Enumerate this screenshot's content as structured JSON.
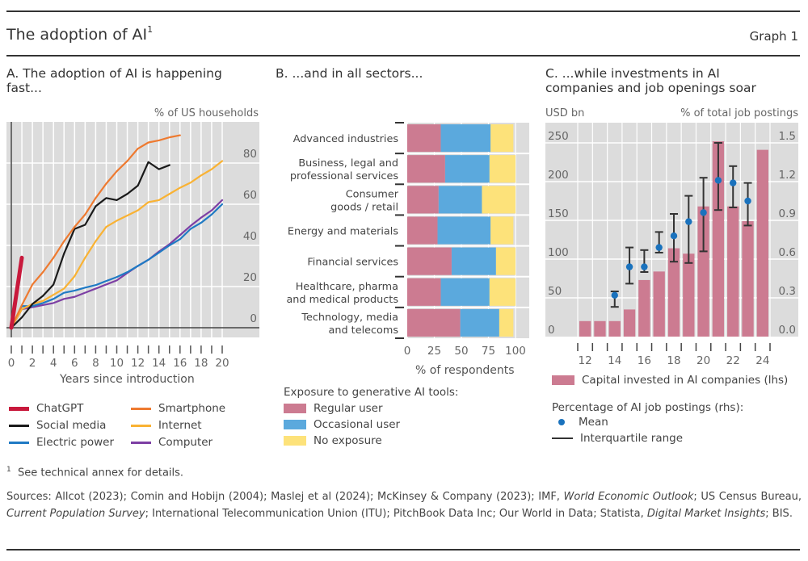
{
  "header": {
    "title": "The adoption of AI",
    "title_sup": "1",
    "graph_number": "Graph 1"
  },
  "colors": {
    "panel_bg": "#dcdcdc",
    "chatgpt": "#c8193c",
    "social_media": "#1a1a1a",
    "electric_power": "#1f7ac4",
    "smartphone": "#ee7a30",
    "internet": "#f9b233",
    "computer": "#7d3fa4",
    "regular_user": "#cc7b91",
    "occasional_user": "#5ba9dd",
    "no_exposure": "#fde27a",
    "capital_bars": "#cc7b91",
    "mean_dot": "#1a72bd",
    "iqr": "#333333"
  },
  "chart_data": [
    {
      "id": "panel_a",
      "type": "line",
      "title": "A. The adoption of AI is happening fast...",
      "ylabel": "% of US households",
      "xlabel": "Years since introduction",
      "xlim": [
        0,
        20
      ],
      "ylim": [
        0,
        100
      ],
      "x_ticks": [
        0,
        2,
        4,
        6,
        8,
        10,
        12,
        14,
        16,
        18,
        20
      ],
      "y_ticks": [
        0,
        20,
        40,
        60,
        80
      ],
      "grid": true,
      "legend_position": "bottom",
      "series": [
        {
          "key": "chatgpt",
          "name": "ChatGPT",
          "x": [
            0,
            1
          ],
          "values": [
            0,
            34
          ]
        },
        {
          "key": "social_media",
          "name": "Social media",
          "x": [
            0,
            1,
            2,
            3,
            4,
            5,
            6,
            7,
            8,
            9,
            10,
            11,
            12,
            13,
            14,
            15
          ],
          "values": [
            0,
            5,
            11.5,
            15.5,
            21,
            36,
            48,
            50,
            59,
            63,
            62,
            65,
            69,
            80.5,
            77,
            79
          ]
        },
        {
          "key": "electric_power",
          "name": "Electric power",
          "x": [
            0,
            1,
            2,
            3,
            4,
            5,
            6,
            7,
            8,
            9,
            10,
            11,
            12,
            13,
            14,
            15,
            16,
            17,
            18,
            19,
            20
          ],
          "values": [
            0,
            10.5,
            10.5,
            12,
            14,
            17,
            18,
            19.5,
            20.7,
            22.7,
            24.6,
            27,
            30,
            33,
            36.5,
            40,
            43,
            48,
            51,
            55,
            60
          ]
        },
        {
          "key": "smartphone",
          "name": "Smartphone",
          "x": [
            0,
            1,
            2,
            3,
            4,
            5,
            6,
            7,
            8,
            9,
            10,
            11,
            12,
            13,
            14,
            15,
            16
          ],
          "values": [
            0,
            11,
            21,
            27,
            34,
            42,
            49,
            55,
            63,
            70,
            76,
            81,
            87,
            90,
            91,
            92.5,
            93.5
          ]
        },
        {
          "key": "internet",
          "name": "Internet",
          "x": [
            0,
            1,
            2,
            3,
            4,
            5,
            6,
            7,
            8,
            9,
            10,
            11,
            12,
            13,
            14,
            15,
            16,
            17,
            18,
            19,
            20
          ],
          "values": [
            0,
            9,
            11.5,
            13,
            16,
            19,
            25,
            34,
            42,
            49,
            52,
            54.5,
            57,
            61,
            62,
            65,
            68,
            70.5,
            74,
            77,
            81
          ]
        },
        {
          "key": "computer",
          "name": "Computer",
          "x": [
            0,
            1,
            2,
            3,
            4,
            5,
            6,
            7,
            8,
            9,
            10,
            11,
            12,
            13,
            14,
            15,
            16,
            17,
            18,
            19,
            20
          ],
          "values": [
            0,
            9,
            10,
            11,
            12,
            14,
            15,
            17,
            19,
            21,
            23,
            26.6,
            30,
            33,
            37,
            40.6,
            45,
            49.5,
            53.5,
            57,
            62
          ]
        }
      ]
    },
    {
      "id": "panel_b",
      "type": "bar",
      "orientation": "horizontal-stacked",
      "title": "B. ...and in all sectors...",
      "xlabel": "% of respondents",
      "xlim": [
        0,
        100
      ],
      "x_ticks": [
        0,
        25,
        50,
        75,
        100
      ],
      "legend_title": "Exposure to generative AI tools:",
      "legend_position": "bottom",
      "categories": [
        [
          "Advanced industries"
        ],
        [
          "Business, legal and",
          "professional services"
        ],
        [
          "Consumer",
          "goods / retail"
        ],
        [
          "Energy and materials"
        ],
        [
          "Financial services"
        ],
        [
          "Healthcare, pharma",
          "and medical products"
        ],
        [
          "Technology, media",
          "and telecoms"
        ]
      ],
      "series": [
        {
          "key": "regular_user",
          "name": "Regular user",
          "values": [
            31,
            35,
            29,
            28,
            41,
            31,
            49
          ]
        },
        {
          "key": "occasional_user",
          "name": "Occasional user",
          "values": [
            46,
            41,
            40,
            49,
            41,
            45,
            36
          ]
        },
        {
          "key": "no_exposure",
          "name": "No exposure",
          "values": [
            21,
            24,
            31,
            21,
            18,
            24,
            13
          ]
        }
      ]
    },
    {
      "id": "panel_c",
      "type": "bar",
      "title": "C. ...while investments in AI companies and job openings soar",
      "ylabel_left": "USD bn",
      "ylabel_right": "% of total job postings",
      "categories": [
        "12",
        "13",
        "14",
        "15",
        "16",
        "17",
        "18",
        "19",
        "20",
        "21",
        "22",
        "23",
        "24"
      ],
      "x_tick_labels": [
        "12",
        "14",
        "16",
        "18",
        "20",
        "22",
        "24"
      ],
      "ylim_left": [
        0,
        250
      ],
      "y_ticks_left": [
        0,
        50,
        100,
        150,
        200,
        250
      ],
      "ylim_right": [
        0,
        1.5
      ],
      "y_ticks_right": [
        "0.0",
        "0.3",
        "0.6",
        "0.9",
        "1.2",
        "1.5"
      ],
      "grid": true,
      "legend_position": "bottom",
      "series": [
        {
          "key": "capital",
          "name": "Capital invested in AI companies (lhs)",
          "axis": "left",
          "values": [
            20,
            20,
            20,
            35,
            73,
            84,
            114,
            107,
            168,
            252,
            168,
            149,
            241
          ]
        },
        {
          "key": "mean",
          "name": "Mean",
          "axis": "right",
          "values": [
            null,
            null,
            0.32,
            0.54,
            0.54,
            0.69,
            0.78,
            0.89,
            0.96,
            1.21,
            1.19,
            1.05,
            null
          ]
        },
        {
          "key": "iqr_high",
          "name": "Interquartile range (upper)",
          "axis": "right",
          "values": [
            null,
            null,
            0.35,
            0.69,
            0.67,
            0.81,
            0.95,
            1.09,
            1.23,
            1.5,
            1.32,
            1.19,
            null
          ]
        },
        {
          "key": "iqr_low",
          "name": "Interquartile range (lower)",
          "axis": "right",
          "values": [
            null,
            null,
            0.23,
            0.41,
            0.5,
            0.65,
            0.58,
            0.57,
            0.66,
            0.98,
            1.0,
            0.86,
            null
          ]
        }
      ],
      "legend_group_title": "Percentage of AI job postings (rhs):",
      "legend_mean": "Mean",
      "legend_iqr": "Interquartile range"
    }
  ],
  "panels": {
    "a": {
      "title": "A. The adoption of AI is happening fast...",
      "unit": "% of US households",
      "xlabel": "Years since introduction"
    },
    "b": {
      "title": "B. ...and in all sectors...",
      "xlabel": "% of respondents",
      "legend_title": "Exposure to generative AI tools:"
    },
    "c": {
      "title_line1": "C. ...while investments in AI",
      "title_line2": "companies and job openings soar",
      "unit_left": "USD bn",
      "unit_right": "% of total job postings"
    }
  },
  "legend_a": [
    {
      "key": "chatgpt",
      "label": "ChatGPT",
      "thick": true
    },
    {
      "key": "smartphone",
      "label": "Smartphone"
    },
    {
      "key": "social_media",
      "label": "Social media"
    },
    {
      "key": "internet",
      "label": "Internet"
    },
    {
      "key": "electric_power",
      "label": "Electric power"
    },
    {
      "key": "computer",
      "label": "Computer"
    }
  ],
  "footer": {
    "footnote_mark": "1",
    "footnote": "See technical annex for details.",
    "sources_parts": [
      {
        "t": "Sources: Allcot (2023); Comin and Hobijn (2004); Maslej et al (2024); McKinsey & Company (2023); IMF, "
      },
      {
        "t": "World Economic Outlook",
        "i": true
      },
      {
        "t": "; US Census Bureau, "
      },
      {
        "t": "Current Population Survey",
        "i": true
      },
      {
        "t": "; International Telecommunication Union (ITU); PitchBook Data Inc; Our World in Data; Statista, "
      },
      {
        "t": "Digital Market Insights",
        "i": true
      },
      {
        "t": "; BIS."
      }
    ]
  }
}
